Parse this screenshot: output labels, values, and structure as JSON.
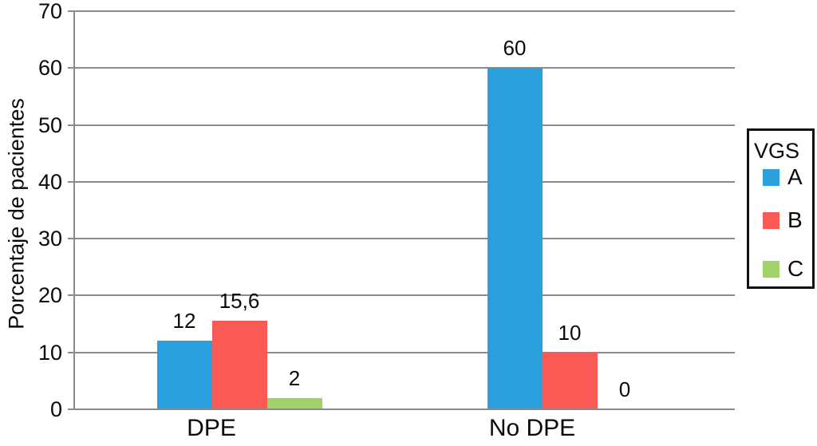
{
  "chart_data": {
    "type": "bar",
    "categories": [
      "DPE",
      "No DPE"
    ],
    "series": [
      {
        "name": "A",
        "color": "#2A9FDC",
        "values": [
          12,
          60
        ],
        "labels": [
          "12",
          "60"
        ]
      },
      {
        "name": "B",
        "color": "#FA5A55",
        "values": [
          15.6,
          10
        ],
        "labels": [
          "15,6",
          "10"
        ]
      },
      {
        "name": "C",
        "color": "#A0D269",
        "values": [
          2,
          0
        ],
        "labels": [
          "2",
          "0"
        ]
      }
    ],
    "title": "",
    "xlabel": "",
    "ylabel": "Porcentaje de pacientes",
    "ylim": [
      0,
      70
    ],
    "yticks": [
      0,
      10,
      20,
      30,
      40,
      50,
      60,
      70
    ],
    "grid": true,
    "legend": {
      "title": "VGS",
      "position": "right"
    }
  },
  "colors": {
    "grid": "#8a8a8a",
    "text": "#0a0a0a",
    "legend_border": "#111111",
    "background": "#ffffff"
  }
}
